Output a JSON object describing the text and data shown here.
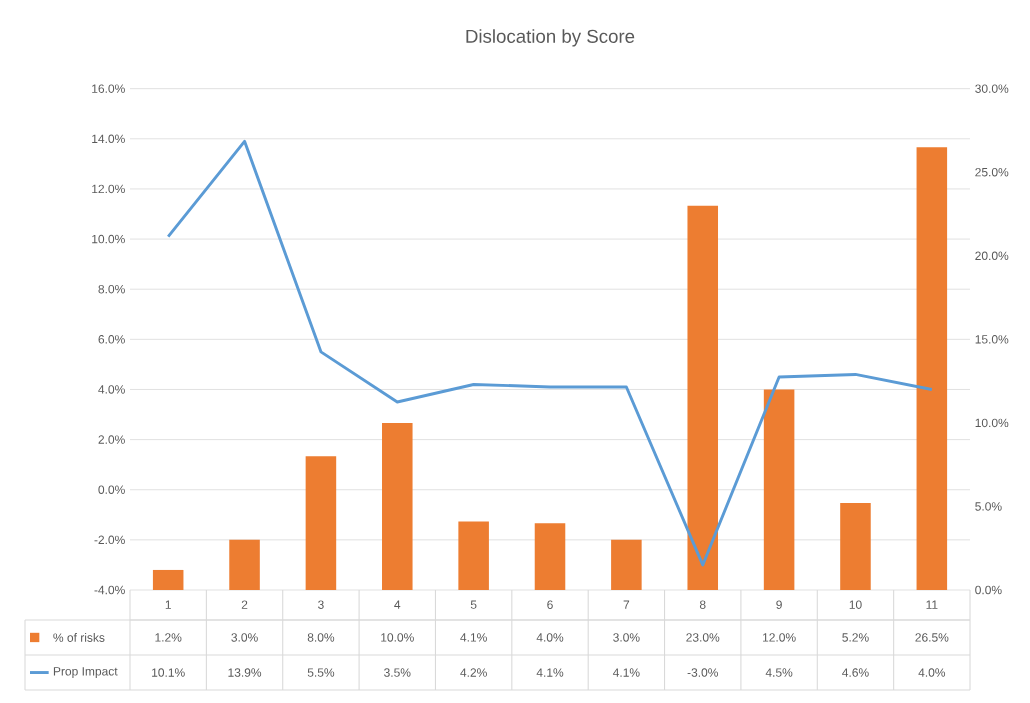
{
  "chart_data": {
    "type": "bar",
    "title": "Dislocation by Score",
    "categories": [
      "1",
      "2",
      "3",
      "4",
      "5",
      "6",
      "7",
      "8",
      "9",
      "10",
      "11"
    ],
    "series": [
      {
        "name": "% of risks",
        "axis": "y2",
        "color": "#ed7d31",
        "values": [
          1.2,
          3.0,
          8.0,
          10.0,
          4.1,
          4.0,
          3.0,
          23.0,
          12.0,
          5.2,
          26.5
        ],
        "value_labels": [
          "1.2%",
          "3.0%",
          "8.0%",
          "10.0%",
          "4.1%",
          "4.0%",
          "3.0%",
          "23.0%",
          "12.0%",
          "5.2%",
          "26.5%"
        ]
      },
      {
        "name": "Prop Impact",
        "type": "line",
        "axis": "y",
        "color": "#5b9bd5",
        "values": [
          10.1,
          13.9,
          5.5,
          3.5,
          4.2,
          4.1,
          4.1,
          -3.0,
          4.5,
          4.6,
          4.0
        ],
        "value_labels": [
          "10.1%",
          "13.9%",
          "5.5%",
          "3.5%",
          "4.2%",
          "4.1%",
          "4.1%",
          "-3.0%",
          "4.5%",
          "4.6%",
          "4.0%"
        ]
      }
    ],
    "ylim": [
      -4,
      16
    ],
    "yticks": [
      {
        "value": -4,
        "label": "-4.0%"
      },
      {
        "value": -2,
        "label": "-2.0%"
      },
      {
        "value": 0,
        "label": "0.0%"
      },
      {
        "value": 2,
        "label": "2.0%"
      },
      {
        "value": 4,
        "label": "4.0%"
      },
      {
        "value": 6,
        "label": "6.0%"
      },
      {
        "value": 8,
        "label": "8.0%"
      },
      {
        "value": 10,
        "label": "10.0%"
      },
      {
        "value": 12,
        "label": "12.0%"
      },
      {
        "value": 14,
        "label": "14.0%"
      },
      {
        "value": 16,
        "label": "16.0%"
      }
    ],
    "y2lim": [
      0,
      30
    ],
    "y2ticks": [
      {
        "value": 0,
        "label": "0.0%"
      },
      {
        "value": 5,
        "label": "5.0%"
      },
      {
        "value": 10,
        "label": "10.0%"
      },
      {
        "value": 15,
        "label": "15.0%"
      },
      {
        "value": 20,
        "label": "20.0%"
      },
      {
        "value": 25,
        "label": "25.0%"
      },
      {
        "value": 30,
        "label": "30.0%"
      }
    ],
    "grid": "y",
    "legend": "bottom"
  }
}
